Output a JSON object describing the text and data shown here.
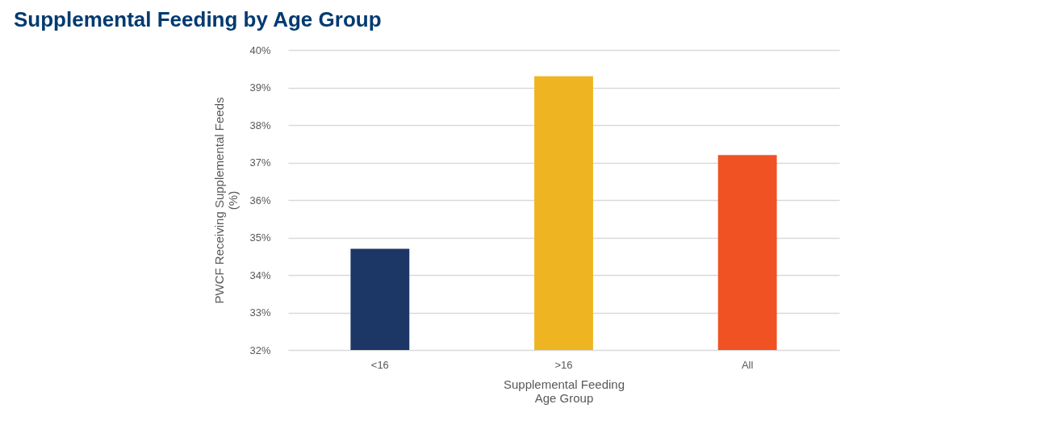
{
  "chart_data": {
    "type": "bar",
    "title": "Supplemental Feeding by Age Group",
    "xlabel": "Supplemental Feeding\nAge Group",
    "ylabel": "PWCF Receiving Supplemental Feeds\n(%)",
    "categories": [
      "<16",
      ">16",
      "All"
    ],
    "values": [
      34.7,
      39.3,
      37.2
    ],
    "colors": [
      "#1c3765",
      "#efb421",
      "#f05224"
    ],
    "ylim": [
      32,
      40
    ],
    "yticks": [
      {
        "value": 32,
        "label": "32%"
      },
      {
        "value": 33,
        "label": "33%"
      },
      {
        "value": 34,
        "label": "34%"
      },
      {
        "value": 35,
        "label": "35%"
      },
      {
        "value": 36,
        "label": "36%"
      },
      {
        "value": 37,
        "label": "37%"
      },
      {
        "value": 38,
        "label": "38%"
      },
      {
        "value": 39,
        "label": "39%"
      },
      {
        "value": 40,
        "label": "40%"
      }
    ],
    "grid": "y"
  }
}
